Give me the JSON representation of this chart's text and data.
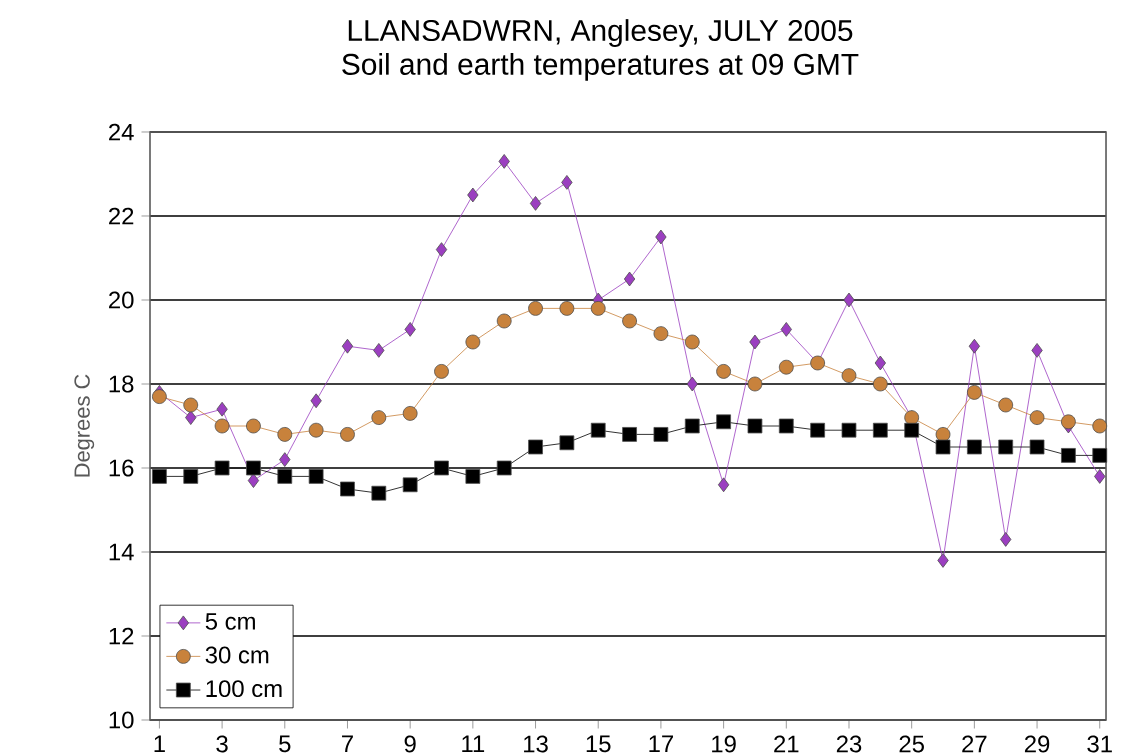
{
  "chart_data": {
    "type": "line",
    "title": "LLANSADWRN, Anglesey, JULY 2005",
    "subtitle": "Soil and earth temperatures at 09 GMT",
    "ylabel": "Degrees C",
    "x": [
      1,
      2,
      3,
      4,
      5,
      6,
      7,
      8,
      9,
      10,
      11,
      12,
      13,
      14,
      15,
      16,
      17,
      18,
      19,
      20,
      21,
      22,
      23,
      24,
      25,
      26,
      27,
      28,
      29,
      30,
      31
    ],
    "series": [
      {
        "name": "5 cm",
        "color": "#9b3fc0",
        "marker": "diamond",
        "values": [
          17.8,
          17.2,
          17.4,
          15.7,
          16.2,
          17.6,
          18.9,
          18.8,
          19.3,
          21.2,
          22.5,
          23.3,
          22.3,
          22.8,
          20.0,
          20.5,
          21.5,
          18.0,
          15.6,
          19.0,
          19.3,
          18.5,
          20.0,
          18.5,
          17.2,
          13.8,
          18.9,
          14.3,
          18.8,
          17.0,
          15.8
        ]
      },
      {
        "name": "30 cm",
        "color": "#c8823c",
        "marker": "circle",
        "values": [
          17.7,
          17.5,
          17.0,
          17.0,
          16.8,
          16.9,
          16.8,
          17.2,
          17.3,
          18.3,
          19.0,
          19.5,
          19.8,
          19.8,
          19.8,
          19.5,
          19.2,
          19.0,
          18.3,
          18.0,
          18.4,
          18.5,
          18.2,
          18.0,
          17.2,
          16.8,
          17.8,
          17.5,
          17.2,
          17.1,
          17.0
        ]
      },
      {
        "name": "100 cm",
        "color": "#000000",
        "marker": "square",
        "values": [
          15.8,
          15.8,
          16.0,
          16.0,
          15.8,
          15.8,
          15.5,
          15.4,
          15.6,
          16.0,
          15.8,
          16.0,
          16.5,
          16.6,
          16.9,
          16.8,
          16.8,
          17.0,
          17.1,
          17.0,
          17.0,
          16.9,
          16.9,
          16.9,
          16.9,
          16.5,
          16.5,
          16.5,
          16.5,
          16.3,
          16.3
        ]
      }
    ],
    "xlim": [
      0.7,
      31.2
    ],
    "xticks": [
      1,
      3,
      5,
      7,
      9,
      11,
      13,
      15,
      17,
      19,
      21,
      23,
      25,
      27,
      29,
      31
    ],
    "ylim": [
      10,
      24
    ],
    "yticks": [
      10,
      12,
      14,
      16,
      18,
      20,
      22,
      24
    ],
    "grid": "y",
    "legend": "bottom left",
    "line_style": "solid"
  }
}
